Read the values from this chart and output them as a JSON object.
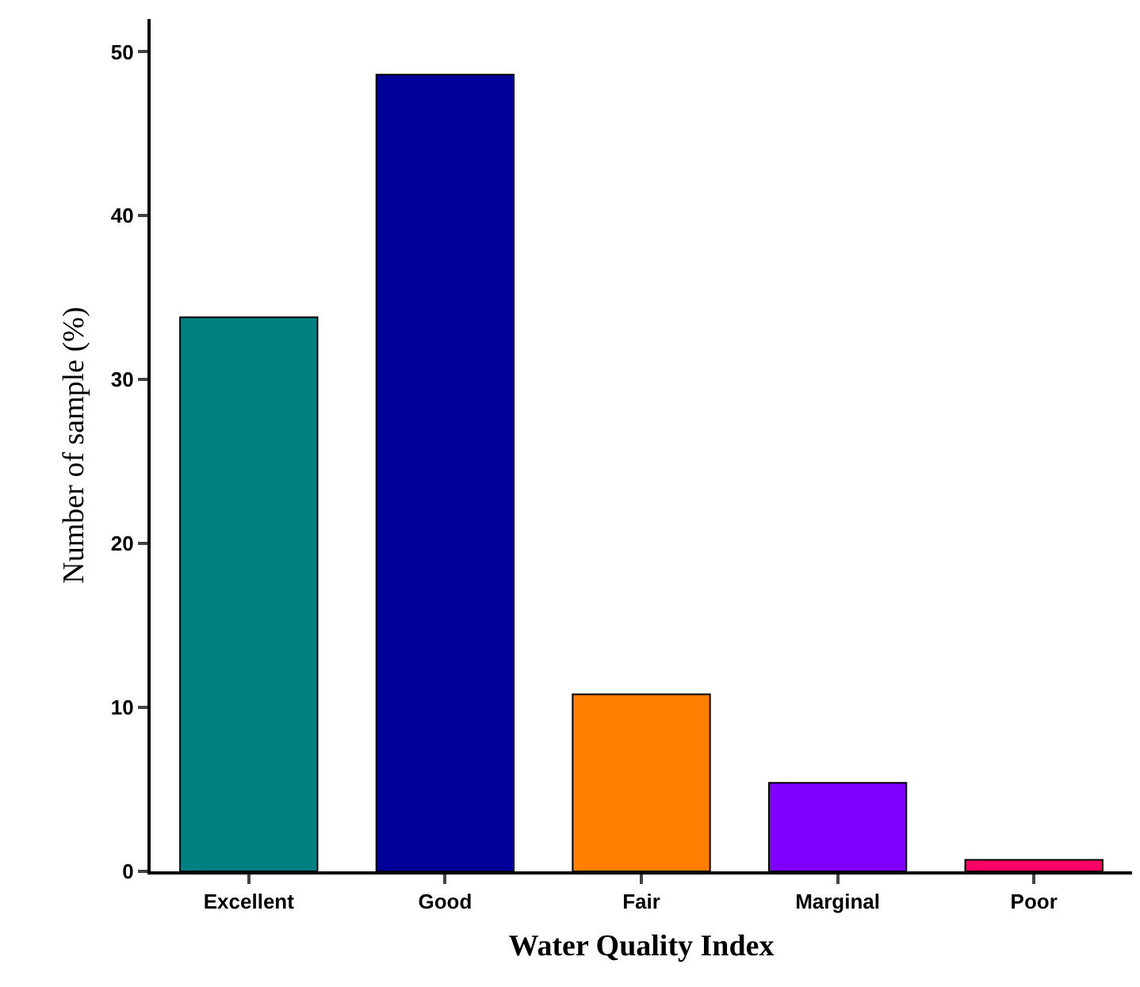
{
  "chart_data": {
    "type": "bar",
    "xlabel": "Water Quality Index",
    "ylabel": "Number of sample (%)",
    "categories": [
      "Excellent",
      "Good",
      "Fair",
      "Marginal",
      "Poor"
    ],
    "values": [
      33.8,
      48.6,
      10.8,
      5.4,
      0.7
    ],
    "colors": [
      "#008080",
      "#000099",
      "#ff8000",
      "#8000ff",
      "#ff0066"
    ],
    "ylim": [
      0,
      52
    ],
    "yticks": [
      0,
      10,
      20,
      30,
      40,
      50
    ],
    "grid": false
  }
}
